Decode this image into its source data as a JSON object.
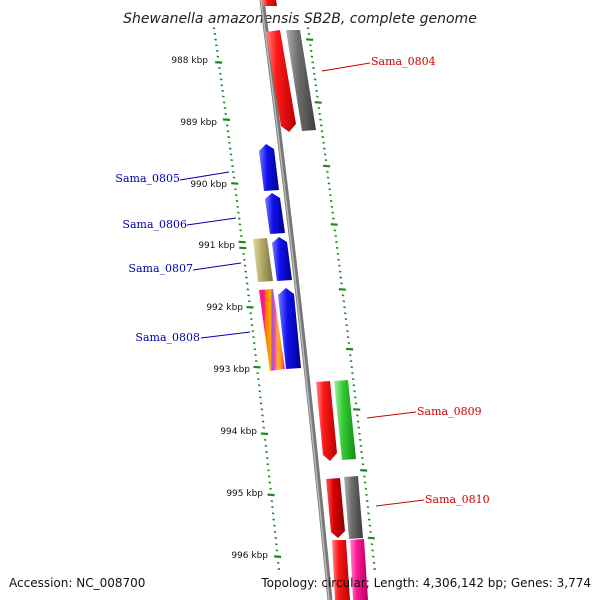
{
  "title": "Shewanella amazonensis SB2B, complete genome",
  "footer": {
    "accession": "Accession: NC_008700",
    "topology": "Topology: circular; Length: 4,306,142 bp; Genes: 3,774"
  },
  "kbp_ticks": [
    "988 kbp",
    "989 kbp",
    "990 kbp",
    "991 kbp",
    "992 kbp",
    "993 kbp",
    "994 kbp",
    "995 kbp",
    "996 kbp"
  ],
  "gene_labels": [
    {
      "text": "Sama_0804",
      "color": "#cc0000",
      "side": "right"
    },
    {
      "text": "Sama_0805",
      "color": "#0000aa",
      "side": "left"
    },
    {
      "text": "Sama_0806",
      "color": "#0000aa",
      "side": "left"
    },
    {
      "text": "Sama_0807",
      "color": "#0000aa",
      "side": "left"
    },
    {
      "text": "Sama_0808",
      "color": "#0000aa",
      "side": "left"
    },
    {
      "text": "Sama_0809",
      "color": "#cc0000",
      "side": "right"
    },
    {
      "text": "Sama_0810",
      "color": "#cc0000",
      "side": "right"
    }
  ],
  "colors": {
    "backbone": "#888888",
    "tick_green": "#1a8a1a",
    "red": "#ff1010",
    "gray": "#6a6a6a",
    "blue": "#0a0aee",
    "khaki": "#b8ae6a",
    "green": "#33cc33",
    "pink": "#ff1493",
    "orange": "#ffa500"
  }
}
